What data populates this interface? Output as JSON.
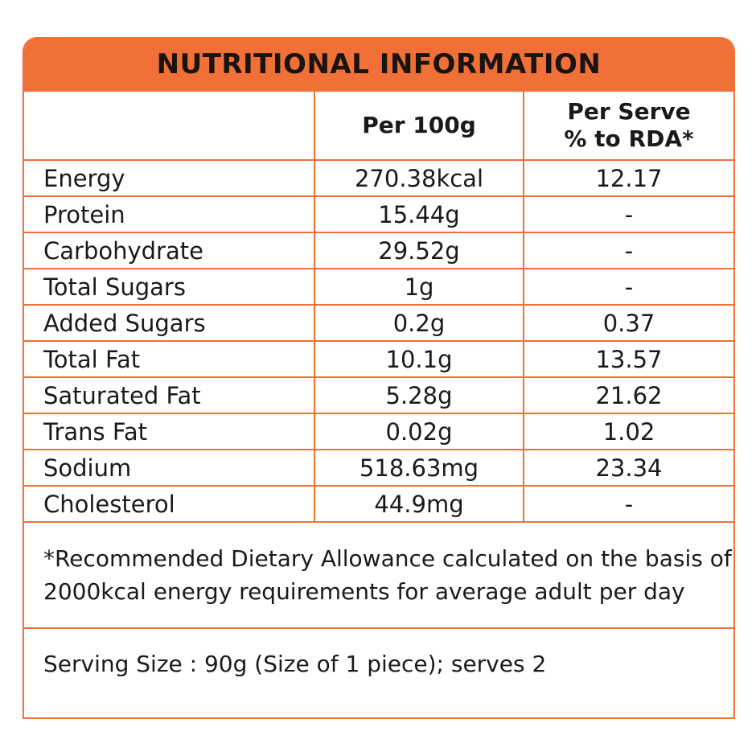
{
  "title": "NUTRITIONAL INFORMATION",
  "columns": [
    "",
    "Per 100g",
    "Per Serve",
    "% to RDA*"
  ],
  "rows": [
    {
      "name": "Energy",
      "per100": "270.38kcal",
      "rda": "12.17"
    },
    {
      "name": "Protein",
      "per100": "15.44g",
      "rda": "-"
    },
    {
      "name": "Carbohydrate",
      "per100": "29.52g",
      "rda": "-"
    },
    {
      "name": "Total Sugars",
      "per100": "1g",
      "rda": "-"
    },
    {
      "name": "Added Sugars",
      "per100": "0.2g",
      "rda": "0.37"
    },
    {
      "name": "Total Fat",
      "per100": "10.1g",
      "rda": "13.57"
    },
    {
      "name": "Saturated Fat",
      "per100": "5.28g",
      "rda": "21.62"
    },
    {
      "name": "Trans Fat",
      "per100": "0.02g",
      "rda": "1.02"
    },
    {
      "name": "Sodium",
      "per100": "518.63mg",
      "rda": "23.34"
    },
    {
      "name": "Cholesterol",
      "per100": "44.9mg",
      "rda": "-"
    }
  ],
  "footnote": "*Recommended Dietary Allowance calculated on the basis of 2000kcal energy requirements for average adult per day",
  "serving": "Serving Size : 90g (Size of 1 piece); serves 2",
  "accent": "#f07038"
}
